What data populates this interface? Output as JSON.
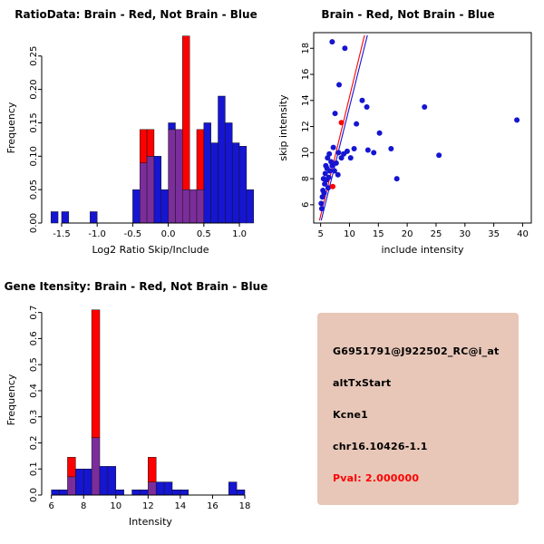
{
  "colors": {
    "red": "#ff0000",
    "blue": "#1515d2",
    "overlap": "#7b2d9b",
    "axis": "#000000",
    "info_bg": "#e8c7b8",
    "pval": "#ff0000"
  },
  "chart_data": [
    {
      "type": "bar",
      "title": "RatioData: Brain - Red, Not Brain - Blue",
      "xlabel": "Log2 Ratio Skip/Include",
      "ylabel": "Frequency",
      "xlim": [
        -1.78,
        1.28
      ],
      "ylim": [
        0,
        0.285
      ],
      "xticks": [
        -1.5,
        -1.0,
        -0.5,
        0.0,
        0.5,
        1.0
      ],
      "xtick_labels": [
        "-1.5",
        "-1.0",
        "-0.5",
        "0.0",
        "0.5",
        "1.0"
      ],
      "yticks": [
        0,
        0.05,
        0.1,
        0.15,
        0.2,
        0.25
      ],
      "ytick_labels": [
        "0.00",
        "0.05",
        "0.10",
        "0.15",
        "0.20",
        "0.25"
      ],
      "bin_width": 0.1,
      "bin_centers": [
        -1.6,
        -1.45,
        -1.05,
        -0.45,
        -0.35,
        -0.25,
        -0.15,
        -0.05,
        0.05,
        0.15,
        0.25,
        0.35,
        0.45,
        0.55,
        0.65,
        0.75,
        0.85,
        0.95,
        1.05,
        1.15
      ],
      "series": [
        {
          "name": "Brain",
          "color": "red",
          "values": [
            0,
            0,
            0,
            0,
            0.14,
            0.14,
            0,
            0,
            0.14,
            0.14,
            0.28,
            0.05,
            0.14,
            0,
            0,
            0,
            0,
            0,
            0,
            0
          ]
        },
        {
          "name": "Not Brain",
          "color": "blue",
          "values": [
            0.017,
            0.017,
            0.017,
            0.05,
            0.09,
            0.1,
            0.1,
            0.05,
            0.15,
            0.14,
            0.05,
            0.05,
            0.05,
            0.15,
            0.12,
            0.19,
            0.15,
            0.12,
            0.115,
            0.05
          ]
        }
      ]
    },
    {
      "type": "scatter",
      "title": "Brain - Red, Not Brain - Blue",
      "xlabel": "include intensity",
      "ylabel": "skip intensity",
      "xlim": [
        3.8,
        41.5
      ],
      "ylim": [
        4.6,
        19.2
      ],
      "xticks": [
        5,
        10,
        15,
        20,
        25,
        30,
        35,
        40
      ],
      "xtick_labels": [
        "5",
        "10",
        "15",
        "20",
        "25",
        "30",
        "35",
        "40"
      ],
      "yticks": [
        6,
        8,
        10,
        12,
        14,
        16,
        18
      ],
      "ytick_labels": [
        "6",
        "8",
        "10",
        "12",
        "14",
        "16",
        "18"
      ],
      "series": [
        {
          "name": "Not Brain",
          "color": "blue",
          "points": [
            [
              5.1,
              6.1
            ],
            [
              5.2,
              5.7
            ],
            [
              5.3,
              6.6
            ],
            [
              5.4,
              7.1
            ],
            [
              5.5,
              8.0
            ],
            [
              5.6,
              6.9
            ],
            [
              5.7,
              7.6
            ],
            [
              5.8,
              8.4
            ],
            [
              5.9,
              9.0
            ],
            [
              6.0,
              7.9
            ],
            [
              6.1,
              8.8
            ],
            [
              6.2,
              9.6
            ],
            [
              6.3,
              7.3
            ],
            [
              6.4,
              8.1
            ],
            [
              6.5,
              9.9
            ],
            [
              6.6,
              8.6
            ],
            [
              6.8,
              9.3
            ],
            [
              7.0,
              18.5
            ],
            [
              7.0,
              9.0
            ],
            [
              7.2,
              10.4
            ],
            [
              7.4,
              8.6
            ],
            [
              7.5,
              13.0
            ],
            [
              7.7,
              9.2
            ],
            [
              8.0,
              8.3
            ],
            [
              8.1,
              10.0
            ],
            [
              8.2,
              15.2
            ],
            [
              8.6,
              9.6
            ],
            [
              9.0,
              9.9
            ],
            [
              9.2,
              18.0
            ],
            [
              9.6,
              10.1
            ],
            [
              10.2,
              9.6
            ],
            [
              10.8,
              10.3
            ],
            [
              11.2,
              12.2
            ],
            [
              12.2,
              14.0
            ],
            [
              13.0,
              13.5
            ],
            [
              13.2,
              10.2
            ],
            [
              14.2,
              10.0
            ],
            [
              15.2,
              11.5
            ],
            [
              17.2,
              10.3
            ],
            [
              18.2,
              8.0
            ],
            [
              23.0,
              13.5
            ],
            [
              25.5,
              9.8
            ],
            [
              39.0,
              12.5
            ]
          ]
        },
        {
          "name": "Brain",
          "color": "red",
          "points": [
            [
              8.6,
              12.3
            ],
            [
              7.1,
              7.4
            ]
          ]
        }
      ],
      "lines": [
        {
          "color": "red",
          "x1": 4.8,
          "y1": 4.8,
          "x2": 12.6,
          "y2": 19.0
        },
        {
          "color": "blue",
          "x1": 5.1,
          "y1": 4.8,
          "x2": 13.1,
          "y2": 19.0
        }
      ]
    },
    {
      "type": "bar",
      "title": "Gene Itensity: Brain - Red, Not Brain - Blue",
      "xlabel": "Intensity",
      "ylabel": "Frequency",
      "xlim": [
        5.4,
        18.9
      ],
      "ylim": [
        0,
        0.73
      ],
      "xticks": [
        6,
        8,
        10,
        12,
        14,
        16,
        18
      ],
      "xtick_labels": [
        "6",
        "8",
        "10",
        "12",
        "14",
        "16",
        "18"
      ],
      "yticks": [
        0,
        0.1,
        0.2,
        0.3,
        0.4,
        0.5,
        0.6,
        0.7
      ],
      "ytick_labels": [
        "0.0",
        "0.1",
        "0.2",
        "0.3",
        "0.4",
        "0.5",
        "0.6",
        "0.7"
      ],
      "bin_width": 0.5,
      "bin_centers": [
        6.25,
        6.75,
        7.25,
        7.75,
        8.25,
        8.75,
        9.25,
        9.75,
        10.25,
        11.25,
        11.75,
        12.25,
        12.75,
        13.25,
        13.75,
        14.25,
        17.25,
        17.75
      ],
      "series": [
        {
          "name": "Brain",
          "color": "red",
          "values": [
            0,
            0,
            0.145,
            0,
            0,
            0.71,
            0,
            0,
            0,
            0,
            0,
            0.145,
            0,
            0,
            0,
            0,
            0,
            0
          ]
        },
        {
          "name": "Not Brain",
          "color": "blue",
          "values": [
            0.02,
            0.02,
            0.07,
            0.1,
            0.1,
            0.22,
            0.11,
            0.11,
            0.02,
            0.02,
            0.02,
            0.05,
            0.05,
            0.05,
            0.02,
            0.02,
            0.05,
            0.02
          ]
        }
      ]
    }
  ],
  "info_box": {
    "lines": [
      "G6951791@J922502_RC@i_at",
      "altTxStart",
      "Kcne1",
      "chr16.10426-1.1"
    ],
    "pval": "Pval: 2.000000"
  }
}
